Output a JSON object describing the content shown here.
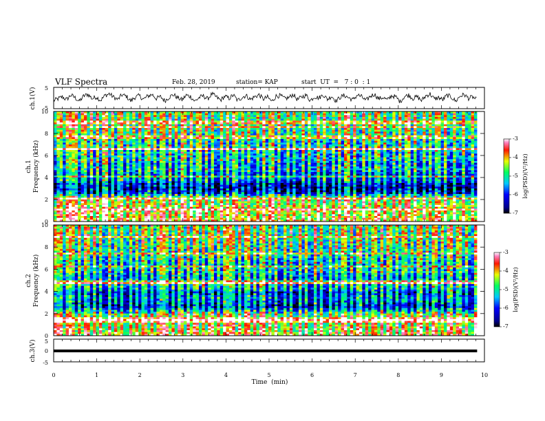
{
  "header": {
    "title": "VLF Spectra",
    "date": "Feb. 28, 2019",
    "station": "station= KAP",
    "start": "start  UT  =   7 : 0  : 1"
  },
  "chart_data": [
    {
      "type": "line",
      "name": "ch1-waveform",
      "ylabel": "ch.1(V)",
      "ylim": [
        -5,
        5
      ],
      "yticks": [
        "5",
        "-5"
      ],
      "xlim": [
        0,
        10
      ],
      "x_end": 9.83,
      "values": [
        -1.2,
        -0.4,
        0.6,
        -0.8,
        1.4,
        0.2,
        -1.6,
        0.9,
        1.8,
        -0.3,
        0.5,
        -1.1,
        1.2,
        2.0,
        0.4,
        -0.7,
        1.5,
        0.8,
        -1.4,
        0.3,
        1.1,
        -0.6,
        0.9,
        1.7,
        -0.2,
        0.6,
        -1.3,
        0.4,
        1.6,
        0.1,
        -0.9,
        1.3,
        0.7,
        -1.5,
        0.2,
        1.0,
        -0.4,
        1.9,
        0.5,
        -1.0,
        0.8,
        -0.2,
        1.4,
        -1.2,
        0.3,
        1.2,
        -0.7,
        0.6,
        1.5,
        -0.5,
        0.4,
        -1.6,
        0.9,
        1.1,
        -0.3,
        0.2,
        1.7,
        -0.8,
        0.5,
        1.3,
        -1.1,
        0.7,
        0.0,
        1.6,
        -0.6,
        0.9,
        -1.4,
        0.4,
        1.2,
        0.1,
        -0.9,
        1.5,
        0.6,
        -1.3,
        0.8,
        1.8,
        -0.4,
        0.3,
        -1.0,
        1.1,
        0.5,
        -1.7,
        0.7,
        1.4,
        -0.2,
        0.6,
        -1.2,
        1.0,
        1.9,
        -0.5,
        0.2,
        -0.8,
        1.3,
        0.4,
        -1.5,
        0.9,
        1.6,
        -0.1,
        0.5,
        -1.1
      ]
    },
    {
      "type": "heatmap",
      "name": "ch1-spectrogram",
      "ylabel": "ch.1 Frequency (kHz)",
      "ylim": [
        0,
        10
      ],
      "yticks": [
        "0",
        "2",
        "4",
        "6",
        "8",
        "10"
      ],
      "xlim": [
        0,
        10
      ],
      "x_end": 9.83,
      "colorbar": {
        "label": "log(PSD)(V²/Hz)",
        "range": [
          -7,
          -3
        ],
        "ticks": [
          "-3",
          "-4",
          "-5",
          "-6",
          "-7"
        ]
      },
      "frequency_profile_kHz": [
        [
          0.0,
          -4.2
        ],
        [
          0.5,
          -4.6
        ],
        [
          1.0,
          -4.5
        ],
        [
          1.5,
          -4.7
        ],
        [
          2.0,
          -4.9
        ],
        [
          2.3,
          -5.4
        ],
        [
          2.6,
          -6.6
        ],
        [
          3.0,
          -6.9
        ],
        [
          3.4,
          -6.8
        ],
        [
          3.8,
          -6.0
        ],
        [
          4.2,
          -6.3
        ],
        [
          4.8,
          -5.7
        ],
        [
          5.2,
          -6.1
        ],
        [
          5.6,
          -5.6
        ],
        [
          6.0,
          -5.8
        ],
        [
          6.6,
          -5.5
        ],
        [
          7.2,
          -5.6
        ],
        [
          8.0,
          -5.3
        ],
        [
          9.0,
          -5.2
        ],
        [
          10.0,
          -5.1
        ]
      ],
      "bursts_min": [
        0.1,
        0.18,
        0.3,
        0.42,
        0.55,
        0.7,
        0.88,
        1.02,
        1.2,
        1.35,
        1.55,
        1.7,
        1.85,
        2.02,
        2.18,
        2.35,
        2.52,
        2.7,
        2.85,
        3.02,
        3.2,
        3.38,
        3.55,
        3.7,
        3.88,
        4.05,
        4.22,
        4.4,
        4.55,
        4.72,
        4.9,
        5.05,
        5.25,
        5.42,
        5.6,
        5.78,
        5.95,
        6.12,
        6.3,
        6.48,
        6.65,
        6.82,
        7.0,
        7.18,
        7.35,
        7.52,
        7.7,
        7.88,
        8.05,
        8.22,
        8.4,
        8.58,
        8.75,
        8.92,
        9.1,
        9.3,
        9.5,
        9.7
      ]
    },
    {
      "type": "heatmap",
      "name": "ch2-spectrogram",
      "ylabel": "ch.2 Frequency (kHz)",
      "ylim": [
        0,
        10
      ],
      "yticks": [
        "0",
        "2",
        "4",
        "6",
        "8",
        "10"
      ],
      "xlim": [
        0,
        10
      ],
      "x_end": 9.83,
      "colorbar": {
        "label": "log(PSD)(V²/Hz)",
        "range": [
          -7,
          -3
        ],
        "ticks": [
          "-3",
          "-4",
          "-5",
          "-6",
          "-7"
        ]
      },
      "frequency_profile_kHz": [
        [
          0.0,
          -4.5
        ],
        [
          0.5,
          -4.7
        ],
        [
          1.0,
          -4.9
        ],
        [
          1.5,
          -5.2
        ],
        [
          1.9,
          -5.0
        ],
        [
          2.2,
          -5.8
        ],
        [
          2.6,
          -6.7
        ],
        [
          3.0,
          -6.5
        ],
        [
          3.4,
          -6.2
        ],
        [
          3.9,
          -6.6
        ],
        [
          4.2,
          -6.0
        ],
        [
          4.8,
          -5.8
        ],
        [
          5.3,
          -6.2
        ],
        [
          5.8,
          -5.7
        ],
        [
          6.4,
          -5.9
        ],
        [
          7.0,
          -5.6
        ],
        [
          8.0,
          -5.4
        ],
        [
          9.0,
          -5.3
        ],
        [
          10.0,
          -5.2
        ]
      ],
      "bursts_min": [
        0.08,
        0.2,
        0.35,
        0.48,
        0.62,
        0.78,
        0.95,
        1.1,
        1.28,
        1.42,
        1.6,
        1.78,
        1.95,
        2.1,
        2.28,
        2.45,
        2.6,
        2.78,
        2.95,
        3.12,
        3.3,
        3.48,
        3.65,
        3.82,
        4.0,
        4.15,
        4.32,
        4.5,
        4.68,
        4.85,
        5.0,
        5.18,
        5.35,
        5.52,
        5.7,
        5.88,
        6.05,
        6.22,
        6.4,
        6.58,
        6.75,
        6.92,
        7.1,
        7.28,
        7.45,
        7.62,
        7.8,
        7.98,
        8.15,
        8.32,
        8.5,
        8.68,
        8.85,
        9.02,
        9.2,
        9.4,
        9.6,
        9.78
      ]
    },
    {
      "type": "line",
      "name": "ch3-waveform",
      "ylabel": "ch.3(V)",
      "ylim": [
        -5,
        5
      ],
      "yticks": [
        "5",
        "0",
        "-5"
      ],
      "xlim": [
        0,
        10
      ],
      "x_end": 9.83,
      "values": [
        -0.2,
        -0.2
      ]
    }
  ],
  "xaxis": {
    "label": "Time  (min)",
    "ticks": [
      "0",
      "1",
      "2",
      "3",
      "4",
      "5",
      "6",
      "7",
      "8",
      "9",
      "10"
    ]
  }
}
